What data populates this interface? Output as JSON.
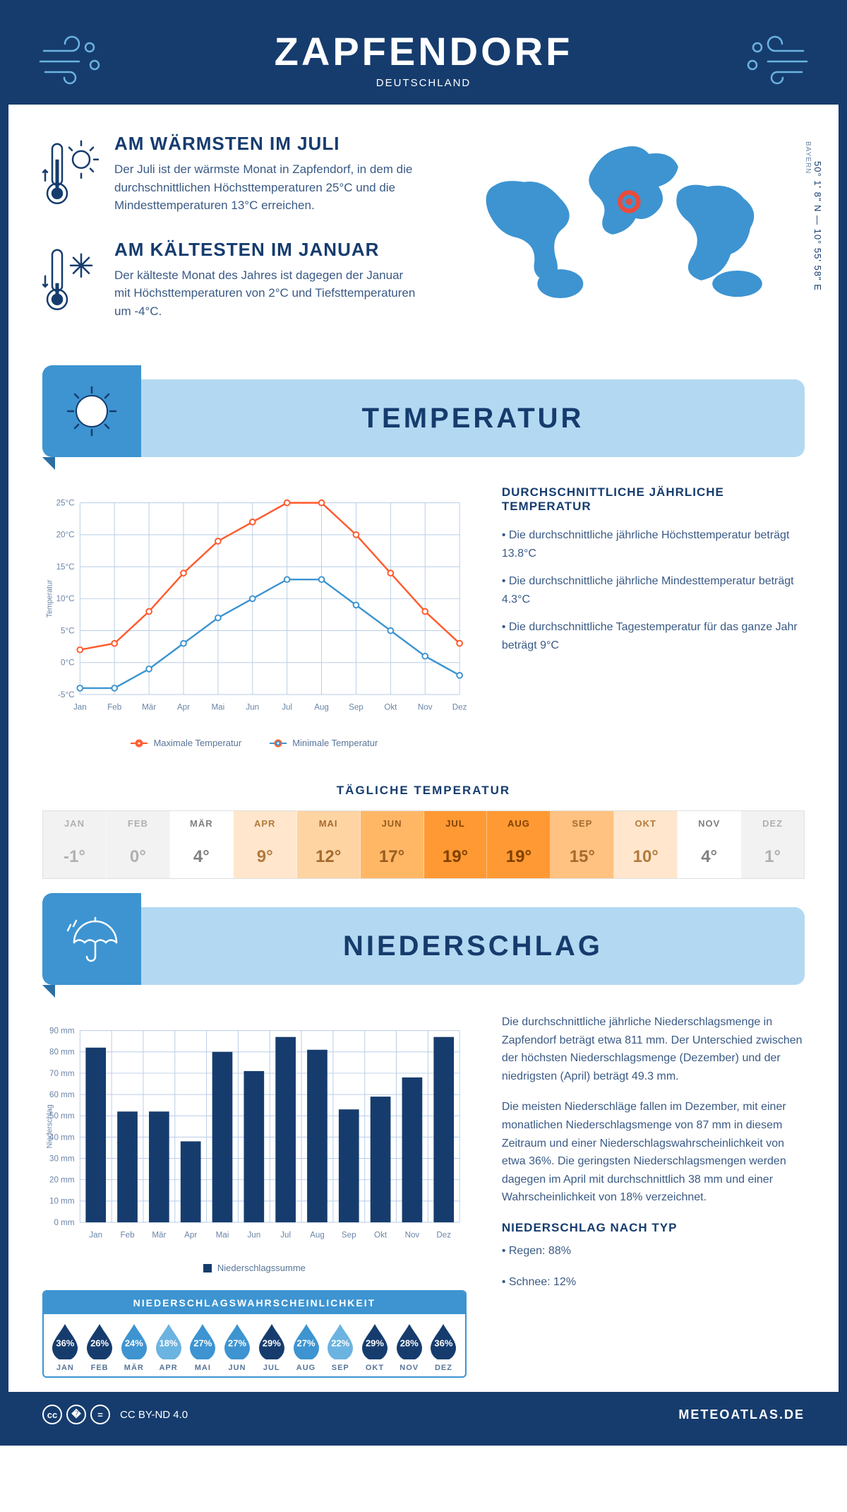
{
  "header": {
    "title": "ZAPFENDORF",
    "country": "DEUTSCHLAND"
  },
  "location": {
    "coords": "50° 1' 8\" N — 10° 55' 58\" E",
    "region": "BAYERN"
  },
  "facts": {
    "warm": {
      "title": "AM WÄRMSTEN IM JULI",
      "text": "Der Juli ist der wärmste Monat in Zapfendorf, in dem die durchschnittlichen Höchsttemperaturen 25°C und die Mindesttemperaturen 13°C erreichen."
    },
    "cold": {
      "title": "AM KÄLTESTEN IM JANUAR",
      "text": "Der kälteste Monat des Jahres ist dagegen der Januar mit Höchsttemperaturen von 2°C und Tiefsttemperaturen um -4°C."
    }
  },
  "sections": {
    "temp": "TEMPERATUR",
    "precip": "NIEDERSCHLAG"
  },
  "temp_chart": {
    "type": "line",
    "months": [
      "Jan",
      "Feb",
      "Mär",
      "Apr",
      "Mai",
      "Jun",
      "Jul",
      "Aug",
      "Sep",
      "Okt",
      "Nov",
      "Dez"
    ],
    "max_series": {
      "label": "Maximale Temperatur",
      "color": "#ff5a2c",
      "values": [
        2,
        3,
        8,
        14,
        19,
        22,
        25,
        25,
        20,
        14,
        8,
        3
      ]
    },
    "min_series": {
      "label": "Minimale Temperatur",
      "color": "#3d94d1",
      "values": [
        -4,
        -4,
        -1,
        3,
        7,
        10,
        13,
        13,
        9,
        5,
        1,
        -2
      ]
    },
    "ylim": [
      -5,
      25
    ],
    "ytick_step": 5,
    "y_axis_title": "Temperatur",
    "grid_color": "#b8cde6",
    "bg": "#ffffff"
  },
  "temp_text": {
    "title": "DURCHSCHNITTLICHE JÄHRLICHE TEMPERATUR",
    "b1": "• Die durchschnittliche jährliche Höchsttemperatur beträgt 13.8°C",
    "b2": "• Die durchschnittliche jährliche Mindesttemperatur beträgt 4.3°C",
    "b3": "• Die durchschnittliche Tagestemperatur für das ganze Jahr beträgt 9°C"
  },
  "daily_temp": {
    "title": "TÄGLICHE TEMPERATUR",
    "months": [
      "JAN",
      "FEB",
      "MÄR",
      "APR",
      "MAI",
      "JUN",
      "JUL",
      "AUG",
      "SEP",
      "OKT",
      "NOV",
      "DEZ"
    ],
    "values": [
      "-1°",
      "0°",
      "4°",
      "9°",
      "12°",
      "17°",
      "19°",
      "19°",
      "15°",
      "10°",
      "4°",
      "1°"
    ],
    "bg_colors": [
      "#f2f2f2",
      "#f2f2f2",
      "#ffffff",
      "#ffe6cc",
      "#ffd4a3",
      "#ffb766",
      "#ff9933",
      "#ff9933",
      "#ffc280",
      "#ffe6cc",
      "#ffffff",
      "#f2f2f2"
    ],
    "text_colors": [
      "#b0b0b0",
      "#b0b0b0",
      "#808080",
      "#b37a3d",
      "#a66a2e",
      "#995c1f",
      "#804000",
      "#804000",
      "#a66a2e",
      "#b37a3d",
      "#808080",
      "#b0b0b0"
    ]
  },
  "precip_chart": {
    "type": "bar",
    "months": [
      "Jan",
      "Feb",
      "Mär",
      "Apr",
      "Mai",
      "Jun",
      "Jul",
      "Aug",
      "Sep",
      "Okt",
      "Nov",
      "Dez"
    ],
    "values": [
      82,
      52,
      52,
      38,
      80,
      71,
      87,
      81,
      53,
      59,
      68,
      87
    ],
    "bar_color": "#163c6e",
    "ylim": [
      0,
      90
    ],
    "ytick_step": 10,
    "y_axis_title": "Niederschlag",
    "y_unit": "mm",
    "grid_color": "#b8cde6",
    "legend": "Niederschlagssumme"
  },
  "precip_text": {
    "p1": "Die durchschnittliche jährliche Niederschlagsmenge in Zapfendorf beträgt etwa 811 mm. Der Unterschied zwischen der höchsten Niederschlagsmenge (Dezember) und der niedrigsten (April) beträgt 49.3 mm.",
    "p2": "Die meisten Niederschläge fallen im Dezember, mit einer monatlichen Niederschlagsmenge von 87 mm in diesem Zeitraum und einer Niederschlagswahrscheinlichkeit von etwa 36%. Die geringsten Niederschlagsmengen werden dagegen im April mit durchschnittlich 38 mm und einer Wahrscheinlichkeit von 18% verzeichnet.",
    "type_title": "NIEDERSCHLAG NACH TYP",
    "type1": "• Regen: 88%",
    "type2": "• Schnee: 12%"
  },
  "probability": {
    "title": "NIEDERSCHLAGSWAHRSCHEINLICHKEIT",
    "months": [
      "JAN",
      "FEB",
      "MÄR",
      "APR",
      "MAI",
      "JUN",
      "JUL",
      "AUG",
      "SEP",
      "OKT",
      "NOV",
      "DEZ"
    ],
    "values": [
      "36%",
      "26%",
      "24%",
      "18%",
      "27%",
      "27%",
      "29%",
      "27%",
      "22%",
      "29%",
      "28%",
      "36%"
    ],
    "drop_colors": [
      "#163c6e",
      "#163c6e",
      "#3d94d1",
      "#6bb3e0",
      "#3d94d1",
      "#3d94d1",
      "#163c6e",
      "#3d94d1",
      "#6bb3e0",
      "#163c6e",
      "#163c6e",
      "#163c6e"
    ]
  },
  "footer": {
    "license": "CC BY-ND 4.0",
    "site": "METEOATLAS.DE"
  },
  "colors": {
    "primary": "#163c6e",
    "accent": "#3d94d1",
    "banner_bg": "#b3d9f2"
  }
}
